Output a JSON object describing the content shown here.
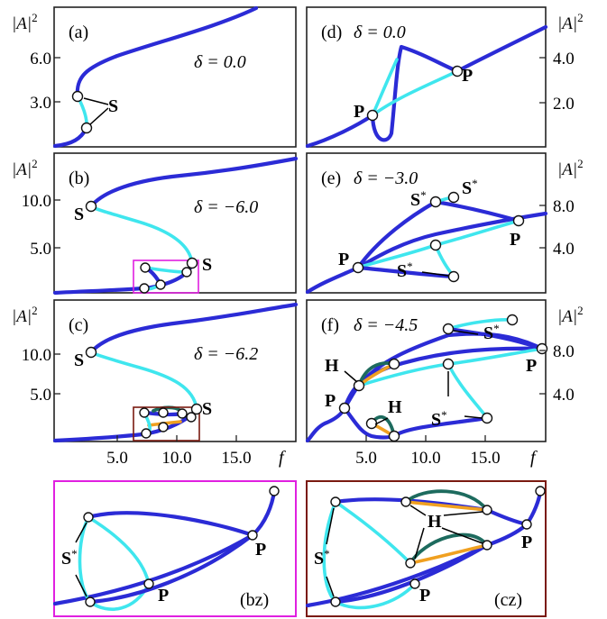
{
  "chart_data": [
    {
      "type": "line",
      "panel": "a",
      "tag": "(a)",
      "delta_label": "δ = 0.0",
      "ylabel": "|A|",
      "ylabel_sup": "2",
      "yticks": [
        {
          "v": "3.0"
        },
        {
          "v": "6.0"
        }
      ],
      "ylim": [
        0,
        9.5
      ],
      "xlim": [
        0,
        20
      ],
      "labels": [
        "S"
      ],
      "series": [
        {
          "style": "stable",
          "points": [
            [
              0,
              0.05
            ],
            [
              1.5,
              0.4
            ],
            [
              2.4,
              1.0
            ],
            [
              2.9,
              1.5
            ]
          ]
        },
        {
          "style": "unstable",
          "points": [
            [
              2.9,
              1.5
            ],
            [
              2.6,
              2.1
            ],
            [
              2.0,
              2.7
            ],
            [
              1.4,
              3.3
            ]
          ]
        },
        {
          "style": "stable",
          "points": [
            [
              1.4,
              3.3
            ],
            [
              2.0,
              4.5
            ],
            [
              4.0,
              5.7
            ],
            [
              8,
              7.0
            ],
            [
              12,
              8.2
            ],
            [
              17,
              9.5
            ]
          ]
        }
      ]
    },
    {
      "type": "line",
      "panel": "b",
      "tag": "(b)",
      "delta_label": "δ = −6.0",
      "ylabel": "|A|",
      "ylabel_sup": "2",
      "yticks": [
        {
          "v": "5.0"
        },
        {
          "v": "10.0"
        }
      ],
      "ylim": [
        0,
        14
      ],
      "xlim": [
        0,
        20
      ],
      "labels": [
        "S",
        "S"
      ],
      "series": [
        {
          "style": "stable",
          "points": [
            [
              0,
              0.1
            ],
            [
              4,
              0.3
            ],
            [
              7.5,
              0.6
            ],
            [
              9,
              1.0
            ],
            [
              10.8,
              2.0
            ],
            [
              11.6,
              3.0
            ]
          ]
        },
        {
          "style": "unstable",
          "points": [
            [
              11.6,
              3.0
            ],
            [
              10.5,
              5.0
            ],
            [
              8,
              7.0
            ],
            [
              5.5,
              8.5
            ],
            [
              3.2,
              9.5
            ]
          ]
        },
        {
          "style": "stable",
          "points": [
            [
              3.2,
              9.5
            ],
            [
              5,
              10.5
            ],
            [
              9,
              11.5
            ],
            [
              14,
              12.7
            ],
            [
              20,
              14
            ]
          ]
        }
      ]
    },
    {
      "type": "line",
      "panel": "c",
      "tag": "(c)",
      "delta_label": "δ = −6.2",
      "ylabel": "|A|",
      "ylabel_sup": "2",
      "yticks": [
        {
          "v": "5.0"
        },
        {
          "v": "10.0"
        }
      ],
      "xticks": [
        {
          "v": "5.0"
        },
        {
          "v": "10.0"
        },
        {
          "v": "15.0"
        }
      ],
      "xlabel": "f",
      "ylim": [
        0,
        14
      ],
      "xlim": [
        0,
        20
      ],
      "labels": [
        "S",
        "S"
      ],
      "series": [
        {
          "style": "stable",
          "points": [
            [
              0,
              0.1
            ],
            [
              4,
              0.3
            ],
            [
              7.5,
              0.6
            ],
            [
              9,
              1.0
            ],
            [
              10.8,
              2.0
            ],
            [
              11.6,
              3.0
            ]
          ]
        },
        {
          "style": "unstable",
          "points": [
            [
              11.6,
              3.0
            ],
            [
              10.5,
              5.0
            ],
            [
              8,
              7.0
            ],
            [
              5.5,
              8.5
            ],
            [
              3.2,
              9.5
            ]
          ]
        },
        {
          "style": "stable",
          "points": [
            [
              3.2,
              9.5
            ],
            [
              5,
              10.5
            ],
            [
              9,
              11.5
            ],
            [
              14,
              12.7
            ],
            [
              20,
              14
            ]
          ]
        }
      ]
    },
    {
      "type": "line",
      "panel": "d",
      "tag": "(d)",
      "delta_label": "δ = 0.0",
      "ylabel": "|A|",
      "ylabel_sup": "2",
      "yticks": [
        {
          "v": "2.0"
        },
        {
          "v": "4.0"
        }
      ],
      "labels": [
        "P",
        "P"
      ]
    },
    {
      "type": "line",
      "panel": "e",
      "tag": "(e)",
      "delta_label": "δ = −3.0",
      "ylabel": "|A|",
      "ylabel_sup": "2",
      "yticks": [
        {
          "v": "4.0"
        },
        {
          "v": "8.0"
        }
      ],
      "labels": [
        "S*",
        "S*",
        "S*",
        "P",
        "P"
      ]
    },
    {
      "type": "line",
      "panel": "f",
      "tag": "(f)",
      "delta_label": "δ = −4.5",
      "ylabel": "|A|",
      "ylabel_sup": "2",
      "yticks": [
        {
          "v": "4.0"
        },
        {
          "v": "8.0"
        }
      ],
      "xticks": [
        {
          "v": "5.0"
        },
        {
          "v": "10.0"
        },
        {
          "v": "15.0"
        }
      ],
      "xlabel": "f",
      "labels": [
        "S*",
        "S*",
        "H",
        "H",
        "P",
        "P"
      ]
    },
    {
      "type": "line",
      "panel": "bz",
      "tag": "(bz)",
      "labels": [
        "S*",
        "P",
        "P"
      ]
    },
    {
      "type": "line",
      "panel": "cz",
      "tag": "(cz)",
      "labels": [
        "S*",
        "H",
        "P",
        "P"
      ]
    }
  ],
  "colors": {
    "stable": "#2b2bd6",
    "unstable": "#3fe6ee",
    "branch_orange": "#f0a020",
    "branch_green": "#1d6b5e",
    "zoom_b_frame": "#e020e0",
    "zoom_c_frame": "#7a1a10"
  }
}
